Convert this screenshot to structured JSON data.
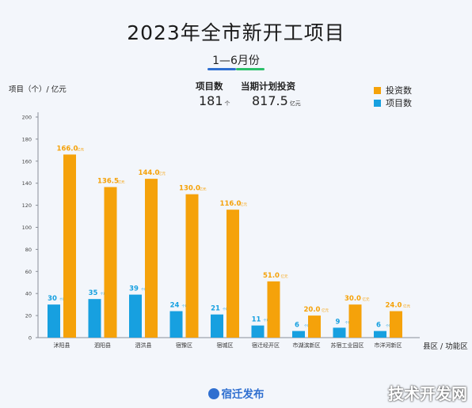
{
  "title": "2023年全市新开工项目",
  "period": "1—6月份",
  "stats": [
    {
      "label": "项目数",
      "value": "181",
      "unit": "个"
    },
    {
      "label": "当期计划投资",
      "value": "817.5",
      "unit": "亿元"
    }
  ],
  "legend": [
    {
      "label": "投资数",
      "color": "#f5a20a"
    },
    {
      "label": "项目数",
      "color": "#17a0e0"
    }
  ],
  "colors": {
    "invest": "#f5a20a",
    "projects": "#17a0e0",
    "axis": "#555555"
  },
  "footer": "宿迁发布",
  "watermark": "技术开发网",
  "chart_data": {
    "type": "bar",
    "ylabel": "项目（个）/ 亿元",
    "xlabel": "县区 / 功能区",
    "ylim": [
      0,
      200
    ],
    "yticks": [
      0,
      20,
      40,
      60,
      80,
      100,
      120,
      140,
      160,
      180,
      200
    ],
    "categories": [
      "沭阳县",
      "泗阳县",
      "泗洪县",
      "宿豫区",
      "宿城区",
      "宿迁经开区",
      "市湖滨新区",
      "苏宿工业园区",
      "市洋河新区"
    ],
    "series": [
      {
        "name": "项目数",
        "values": [
          30,
          35,
          39,
          24,
          21,
          11,
          6,
          9,
          6
        ],
        "labels": [
          "30",
          "35",
          "39",
          "24",
          "21",
          "11",
          "6",
          "9",
          "6"
        ],
        "unit": "个项目"
      },
      {
        "name": "投资数",
        "values": [
          166.0,
          136.5,
          144.0,
          130.0,
          116.0,
          51.0,
          20.0,
          30.0,
          24.0
        ],
        "labels": [
          "166.0",
          "136.5",
          "144.0",
          "130.0",
          "116.0",
          "51.0",
          "20.0",
          "30.0",
          "24.0"
        ],
        "unit": "亿元"
      }
    ]
  }
}
